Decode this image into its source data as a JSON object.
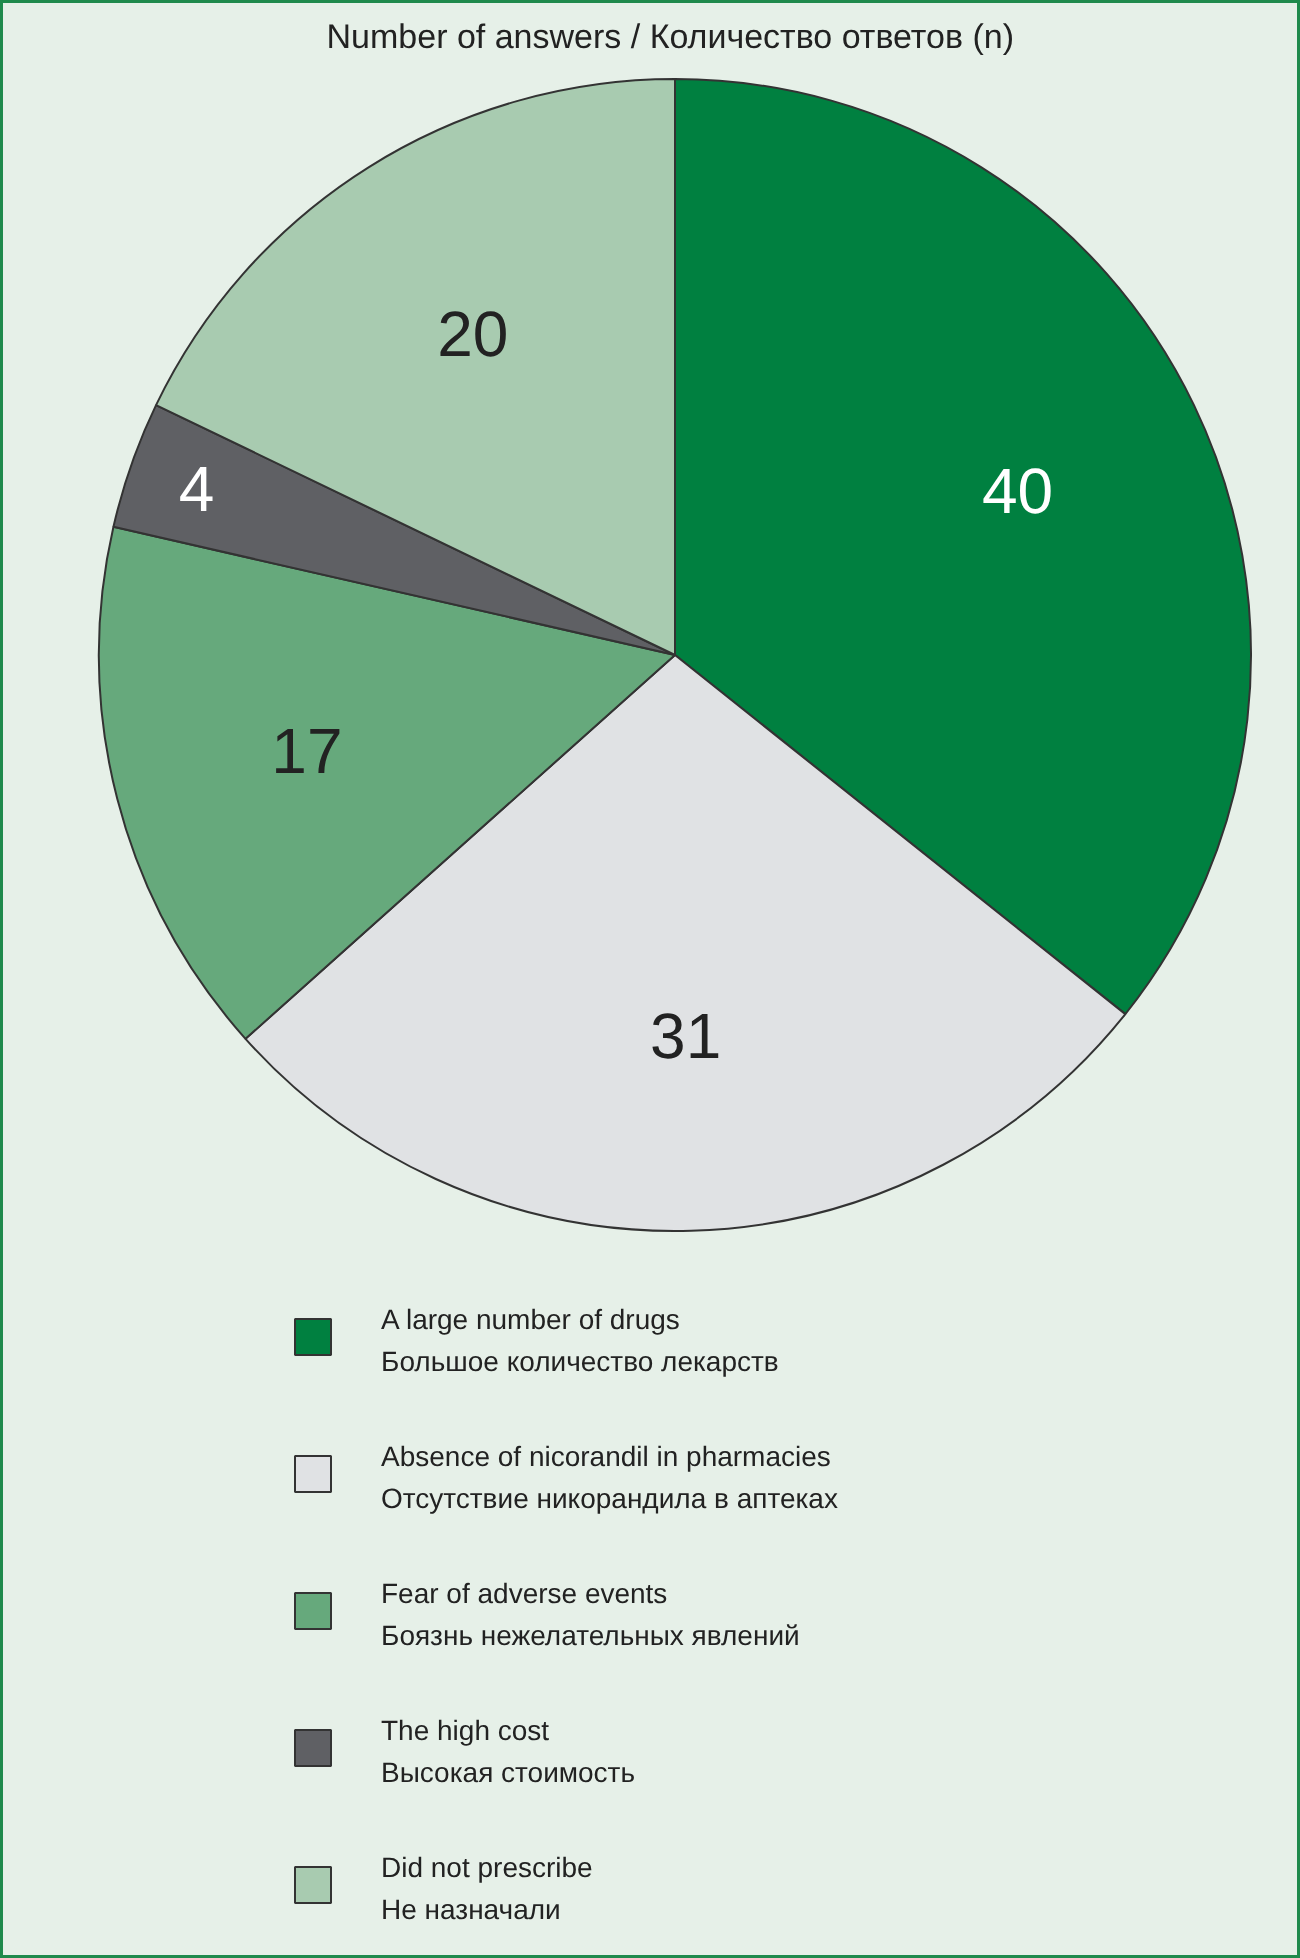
{
  "chart_data": {
    "type": "pie",
    "title": "Number of answers  / Количество ответов (n)",
    "categories": [
      "A large number of drugs\nБольшое количество лекарств",
      "Absence of nicorandil in pharmacies\nОтсутствие никорандила в аптеках",
      "Fear of adverse events\nБоязнь нежелательных явлений",
      "The high cost\nВысокая стоимость",
      "Did not prescribe\nНе назначали"
    ],
    "values": [
      40,
      31,
      17,
      4,
      20
    ],
    "colors": [
      "#008040",
      "#e0e2e4",
      "#66a97c",
      "#5f6064",
      "#a8cbb0"
    ],
    "data_labels": true,
    "legend": "bottom"
  }
}
